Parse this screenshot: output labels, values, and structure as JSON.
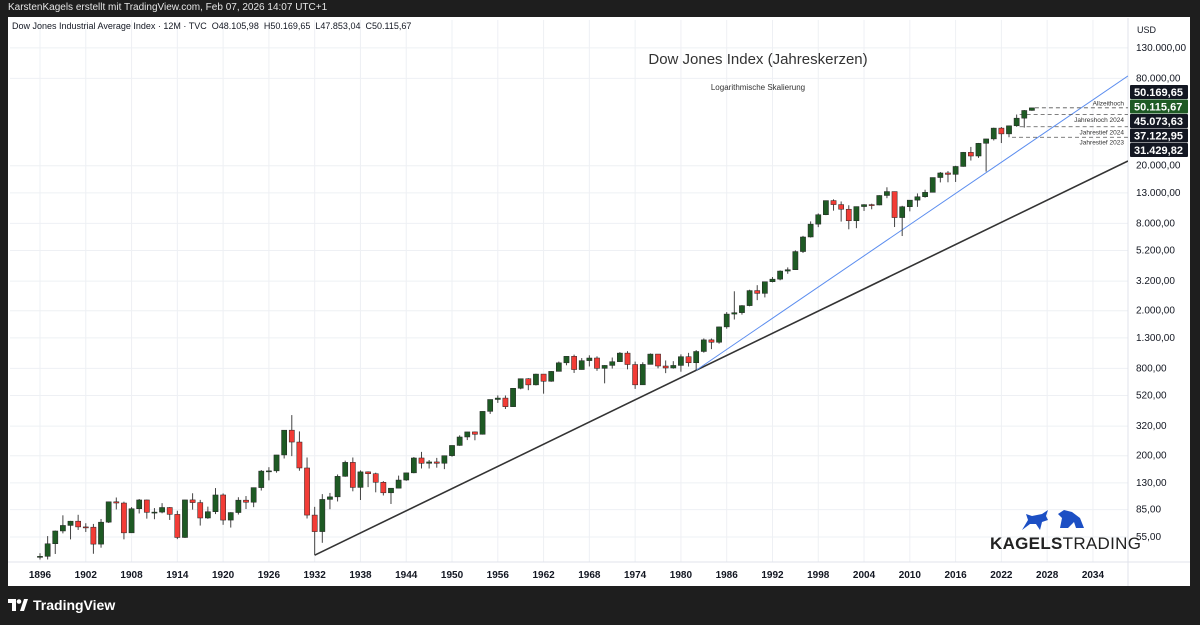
{
  "header": {
    "attribution": "KarstenKagels erstellt mit TradingView.com, Feb 07, 2026 14:07 UTC+1",
    "symbol": "Dow Jones Industrial Average Index · 12M · TVC",
    "ohlc": {
      "open": "O48.105,98",
      "high": "H50.169,65",
      "low": "L47.853,04",
      "close": "C50.115,67"
    },
    "currency": "USD"
  },
  "footer": {
    "brand": "TradingView"
  },
  "watermark": {
    "bold": "KAGELS",
    "light": "TRADING",
    "color": "#1c4fc4"
  },
  "chart_data": {
    "type": "candlestick",
    "title": "Dow Jones Index (Jahreskerzen)",
    "subtitle": "Logarithmische Skalierung",
    "y_scale": "log",
    "ylim": [
      36,
      150000
    ],
    "xlim": [
      1894.1,
      2038.6
    ],
    "grid": true,
    "colors": {
      "up": "#1e5a24",
      "down": "#f23c36",
      "support_line": "#333333",
      "trend_line": "#5b8def",
      "last_price": "#1e5a24",
      "label_bg": "#131722"
    },
    "y_ticks": [
      {
        "value": 130000,
        "label": "130.000,00"
      },
      {
        "value": 80000,
        "label": "80.000,00"
      },
      {
        "value": 20000,
        "label": "20.000,00"
      },
      {
        "value": 13000,
        "label": "13.000,00"
      },
      {
        "value": 8000,
        "label": "8.000,00"
      },
      {
        "value": 5200,
        "label": "5.200,00"
      },
      {
        "value": 3200,
        "label": "3.200,00"
      },
      {
        "value": 2000,
        "label": "2.000,00"
      },
      {
        "value": 1300,
        "label": "1.300,00"
      },
      {
        "value": 800,
        "label": "800,00"
      },
      {
        "value": 520,
        "label": "520,00"
      },
      {
        "value": 320,
        "label": "320,00"
      },
      {
        "value": 200,
        "label": "200,00"
      },
      {
        "value": 130,
        "label": "130,00"
      },
      {
        "value": 85,
        "label": "85,00"
      },
      {
        "value": 55,
        "label": "55,00"
      }
    ],
    "x_ticks": [
      "1896",
      "1902",
      "1908",
      "1914",
      "1920",
      "1926",
      "1932",
      "1938",
      "1944",
      "1950",
      "1956",
      "1962",
      "1968",
      "1974",
      "1980",
      "1986",
      "1992",
      "1998",
      "2004",
      "2010",
      "2016",
      "2022",
      "2028",
      "2034"
    ],
    "price_labels": [
      {
        "value": 50169.65,
        "label": "50.169,65",
        "style": "dark"
      },
      {
        "value": 50115.67,
        "label": "50.115,67",
        "style": "last"
      },
      {
        "value": 45073.63,
        "label": "45.073,63",
        "style": "dark"
      },
      {
        "value": 37122.95,
        "label": "37.122,95",
        "style": "dark"
      },
      {
        "value": 31429.82,
        "label": "31.429,82",
        "style": "dark"
      }
    ],
    "levels": [
      {
        "value": 50169.65,
        "label": "Allzeithoch",
        "from": 2026
      },
      {
        "value": 45073.63,
        "label": "Jahreshoch 2024",
        "from": 2024
      },
      {
        "value": 37122.95,
        "label": "Jahrestief 2024",
        "from": 2024
      },
      {
        "value": 31429.82,
        "label": "Jahrestief 2023",
        "from": 2023
      }
    ],
    "trendlines": [
      {
        "name": "support",
        "points": [
          [
            1932,
            41.22
          ],
          [
            1982,
            776.92
          ]
        ],
        "color": "#333333"
      },
      {
        "name": "trend",
        "points": [
          [
            1982,
            776.92
          ],
          [
            2020.2,
            18213.65
          ]
        ],
        "color": "#5b8def"
      }
    ],
    "columns": [
      "year",
      "open",
      "high",
      "low",
      "close"
    ],
    "candles": [
      [
        1896,
        40.0,
        42.5,
        38.5,
        40.45
      ],
      [
        1897,
        40.45,
        55.8,
        38.5,
        49.41
      ],
      [
        1898,
        49.41,
        60.97,
        42.0,
        60.52
      ],
      [
        1899,
        60.52,
        77.61,
        58.27,
        66.08
      ],
      [
        1900,
        66.08,
        71.04,
        52.96,
        70.71
      ],
      [
        1901,
        70.71,
        78.26,
        61.52,
        64.56
      ],
      [
        1902,
        64.56,
        68.44,
        59.57,
        64.29
      ],
      [
        1903,
        64.29,
        67.7,
        42.15,
        49.11
      ],
      [
        1904,
        49.11,
        73.23,
        46.41,
        69.61
      ],
      [
        1905,
        69.61,
        96.56,
        68.76,
        96.2
      ],
      [
        1906,
        96.2,
        103.0,
        85.18,
        94.35
      ],
      [
        1907,
        94.35,
        96.37,
        53.0,
        58.75
      ],
      [
        1908,
        58.75,
        88.38,
        58.62,
        86.15
      ],
      [
        1909,
        86.15,
        100.53,
        79.91,
        99.05
      ],
      [
        1910,
        99.05,
        99.5,
        73.62,
        81.36
      ],
      [
        1911,
        81.36,
        87.06,
        72.94,
        81.68
      ],
      [
        1912,
        81.68,
        94.15,
        80.15,
        87.87
      ],
      [
        1913,
        87.87,
        88.57,
        72.11,
        78.78
      ],
      [
        1914,
        78.78,
        83.43,
        53.17,
        54.58
      ],
      [
        1915,
        54.58,
        99.21,
        54.22,
        99.15
      ],
      [
        1916,
        99.15,
        110.15,
        84.96,
        95.0
      ],
      [
        1917,
        95.0,
        99.18,
        65.95,
        74.38
      ],
      [
        1918,
        74.38,
        89.07,
        73.38,
        82.2
      ],
      [
        1919,
        82.2,
        119.62,
        79.15,
        107.23
      ],
      [
        1920,
        107.23,
        109.88,
        66.75,
        71.95
      ],
      [
        1921,
        71.95,
        81.5,
        63.9,
        81.1
      ],
      [
        1922,
        81.1,
        103.43,
        78.59,
        98.73
      ],
      [
        1923,
        98.73,
        105.38,
        85.76,
        95.52
      ],
      [
        1924,
        95.52,
        120.51,
        88.33,
        120.51
      ],
      [
        1925,
        120.51,
        159.39,
        115.0,
        156.66
      ],
      [
        1926,
        156.66,
        166.64,
        135.2,
        157.2
      ],
      [
        1927,
        157.2,
        202.4,
        152.73,
        202.4
      ],
      [
        1928,
        202.4,
        300.0,
        191.33,
        300.0
      ],
      [
        1929,
        300.0,
        381.17,
        198.69,
        248.48
      ],
      [
        1930,
        248.48,
        294.07,
        157.51,
        164.58
      ],
      [
        1931,
        164.58,
        194.36,
        73.79,
        77.9
      ],
      [
        1932,
        77.9,
        88.78,
        41.22,
        59.93
      ],
      [
        1933,
        59.93,
        108.67,
        50.16,
        99.9
      ],
      [
        1934,
        99.9,
        110.74,
        85.51,
        104.04
      ],
      [
        1935,
        104.04,
        148.44,
        96.71,
        144.13
      ],
      [
        1936,
        144.13,
        184.9,
        143.11,
        179.9
      ],
      [
        1937,
        179.9,
        194.4,
        113.64,
        120.85
      ],
      [
        1938,
        120.85,
        158.41,
        98.95,
        154.76
      ],
      [
        1939,
        154.76,
        155.92,
        121.44,
        150.24
      ],
      [
        1940,
        150.24,
        152.8,
        111.84,
        131.13
      ],
      [
        1941,
        131.13,
        133.59,
        106.34,
        110.96
      ],
      [
        1942,
        110.96,
        119.71,
        92.92,
        119.4
      ],
      [
        1943,
        119.4,
        145.82,
        119.26,
        135.89
      ],
      [
        1944,
        135.89,
        152.53,
        134.22,
        152.32
      ],
      [
        1945,
        152.32,
        195.82,
        151.35,
        192.91
      ],
      [
        1946,
        192.91,
        212.5,
        163.12,
        177.2
      ],
      [
        1947,
        177.2,
        186.85,
        163.21,
        181.16
      ],
      [
        1948,
        181.16,
        193.16,
        165.39,
        177.3
      ],
      [
        1949,
        177.3,
        200.52,
        161.6,
        200.13
      ],
      [
        1950,
        200.13,
        235.47,
        196.81,
        235.41
      ],
      [
        1951,
        235.41,
        276.37,
        234.0,
        269.23
      ],
      [
        1952,
        269.23,
        292.0,
        256.35,
        291.9
      ],
      [
        1953,
        291.9,
        293.79,
        255.49,
        280.9
      ],
      [
        1954,
        280.9,
        404.39,
        279.87,
        404.39
      ],
      [
        1955,
        404.39,
        488.4,
        388.2,
        488.4
      ],
      [
        1956,
        488.4,
        521.05,
        462.35,
        499.47
      ],
      [
        1957,
        499.47,
        520.77,
        419.79,
        435.69
      ],
      [
        1958,
        435.69,
        583.65,
        435.0,
        583.65
      ],
      [
        1959,
        583.65,
        679.36,
        574.46,
        679.36
      ],
      [
        1960,
        679.36,
        685.47,
        566.05,
        615.89
      ],
      [
        1961,
        615.89,
        734.91,
        610.25,
        731.14
      ],
      [
        1962,
        731.14,
        731.5,
        535.76,
        652.1
      ],
      [
        1963,
        652.1,
        767.21,
        646.79,
        762.95
      ],
      [
        1964,
        762.95,
        891.71,
        762.0,
        874.13
      ],
      [
        1965,
        874.13,
        969.26,
        840.59,
        969.26
      ],
      [
        1966,
        969.26,
        995.15,
        744.32,
        785.69
      ],
      [
        1967,
        785.69,
        943.08,
        785.0,
        905.11
      ],
      [
        1968,
        905.11,
        985.21,
        825.13,
        943.75
      ],
      [
        1969,
        943.75,
        968.85,
        769.93,
        800.36
      ],
      [
        1970,
        800.36,
        842.0,
        631.16,
        838.92
      ],
      [
        1971,
        838.92,
        950.82,
        797.97,
        890.2
      ],
      [
        1972,
        890.2,
        1036.27,
        889.15,
        1020.02
      ],
      [
        1973,
        1020.02,
        1051.7,
        788.31,
        850.86
      ],
      [
        1974,
        850.86,
        891.66,
        577.6,
        616.24
      ],
      [
        1975,
        616.24,
        881.81,
        616.0,
        852.41
      ],
      [
        1976,
        852.41,
        1014.79,
        852.0,
        1004.65
      ],
      [
        1977,
        1004.65,
        1005.0,
        800.85,
        831.17
      ],
      [
        1978,
        831.17,
        907.74,
        742.12,
        805.01
      ],
      [
        1979,
        805.01,
        897.61,
        796.67,
        838.74
      ],
      [
        1980,
        838.74,
        1000.17,
        759.13,
        963.99
      ],
      [
        1981,
        963.99,
        1024.05,
        824.01,
        875.0
      ],
      [
        1982,
        875.0,
        1070.55,
        776.92,
        1046.54
      ],
      [
        1983,
        1046.54,
        1287.2,
        1027.04,
        1258.64
      ],
      [
        1984,
        1258.64,
        1286.64,
        1086.57,
        1211.57
      ],
      [
        1985,
        1211.57,
        1553.1,
        1184.96,
        1546.67
      ],
      [
        1986,
        1546.67,
        1955.57,
        1502.29,
        1895.95
      ],
      [
        1987,
        1895.95,
        2722.42,
        1738.74,
        1938.83
      ],
      [
        1988,
        1938.83,
        2183.5,
        1879.14,
        2168.57
      ],
      [
        1989,
        2168.57,
        2791.41,
        2144.64,
        2753.2
      ],
      [
        1990,
        2753.2,
        2999.75,
        2365.1,
        2633.66
      ],
      [
        1991,
        2633.66,
        3168.83,
        2470.3,
        3168.83
      ],
      [
        1992,
        3168.83,
        3413.21,
        3136.58,
        3301.11
      ],
      [
        1993,
        3301.11,
        3794.33,
        3241.95,
        3754.09
      ],
      [
        1994,
        3754.09,
        3978.36,
        3593.35,
        3834.44
      ],
      [
        1995,
        3834.44,
        5216.47,
        3832.08,
        5117.12
      ],
      [
        1996,
        5117.12,
        6560.91,
        5000.02,
        6448.27
      ],
      [
        1997,
        6448.27,
        8259.31,
        6391.69,
        7908.25
      ],
      [
        1998,
        7908.25,
        9374.27,
        7539.07,
        9181.43
      ],
      [
        1999,
        9181.43,
        11497.12,
        9120.67,
        11497.12
      ],
      [
        2000,
        11497.12,
        11722.98,
        9796.03,
        10786.85
      ],
      [
        2001,
        10786.85,
        11337.92,
        8235.81,
        10021.5
      ],
      [
        2002,
        10021.5,
        10673.1,
        7286.27,
        8341.63
      ],
      [
        2003,
        8341.63,
        10462.44,
        7416.64,
        10453.92
      ],
      [
        2004,
        10453.92,
        10854.54,
        9749.99,
        10783.01
      ],
      [
        2005,
        10783.01,
        10940.55,
        10012.36,
        10717.5
      ],
      [
        2006,
        10717.5,
        12510.57,
        10667.39,
        12463.15
      ],
      [
        2007,
        12463.15,
        14198.1,
        11939.61,
        13264.82
      ],
      [
        2008,
        13264.82,
        13279.54,
        7552.29,
        8776.39
      ],
      [
        2009,
        8776.39,
        10580.33,
        6547.05,
        10428.05
      ],
      [
        2010,
        10428.05,
        11585.38,
        9686.48,
        11577.51
      ],
      [
        2011,
        11577.51,
        12876.0,
        10404.49,
        12217.56
      ],
      [
        2012,
        12217.56,
        13661.87,
        12035.09,
        13104.14
      ],
      [
        2013,
        13104.14,
        16588.25,
        13104.14,
        16576.66
      ],
      [
        2014,
        16576.66,
        18103.45,
        15340.69,
        17823.07
      ],
      [
        2015,
        17823.07,
        18351.36,
        15370.33,
        17425.03
      ],
      [
        2016,
        17425.03,
        19987.63,
        15450.56,
        19762.6
      ],
      [
        2017,
        19762.6,
        24876.07,
        19677.94,
        24719.22
      ],
      [
        2018,
        24719.22,
        26951.81,
        21712.53,
        23327.46
      ],
      [
        2019,
        23327.46,
        28701.66,
        22638.41,
        28538.44
      ],
      [
        2020,
        28538.44,
        30637.47,
        18213.65,
        30606.48
      ],
      [
        2021,
        30606.48,
        36565.73,
        29856.3,
        36338.3
      ],
      [
        2022,
        36338.3,
        36952.65,
        28660.94,
        33147.25
      ],
      [
        2023,
        33147.25,
        37778.85,
        31429.82,
        37689.54
      ],
      [
        2024,
        37689.54,
        45073.63,
        37122.95,
        42544.22
      ],
      [
        2025,
        42544.22,
        48431.57,
        36611.78,
        48063.29
      ],
      [
        2026,
        48105.98,
        50169.65,
        47853.04,
        50115.67
      ]
    ]
  }
}
